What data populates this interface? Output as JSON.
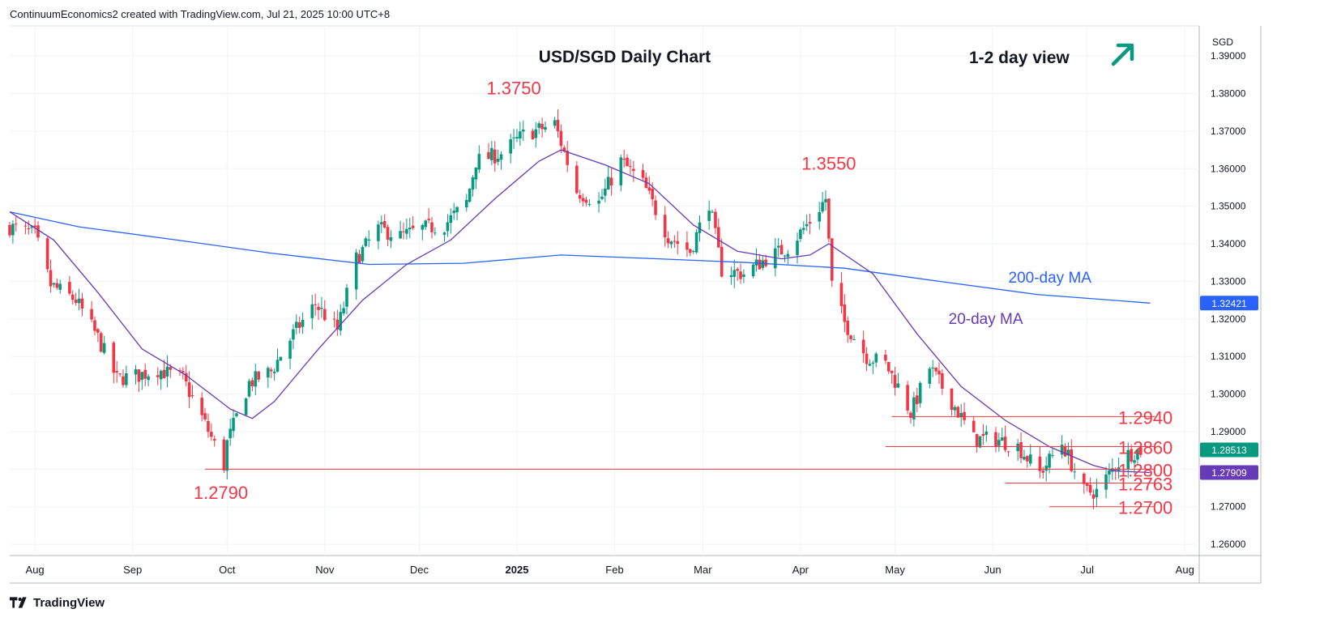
{
  "header": {
    "credit": "ContinuumEconomics2 created with TradingView.com, Jul 21, 2025 10:00 UTC+8"
  },
  "footer": {
    "brand": "TradingView"
  },
  "colors": {
    "up_candle": "#089981",
    "down_candle": "#f23645",
    "ma20": "#673ab7",
    "ma200": "#2962ff",
    "level_line": "#f23645",
    "annotation_red": "#f23645",
    "arrow": "#089981",
    "price_badge": "#089981"
  },
  "chart_data": {
    "type": "candlestick",
    "title": "USD/SGD Daily Chart",
    "view_label": "1-2 day view",
    "view_direction_icon": "arrow-up-right-icon",
    "currency": "SGD",
    "ylim": [
      1.257,
      1.398
    ],
    "y_ticks": [
      "1.39000",
      "1.38000",
      "1.37000",
      "1.36000",
      "1.35000",
      "1.34000",
      "1.33000",
      "1.32000",
      "1.31000",
      "1.30000",
      "1.29000",
      "1.28000",
      "1.27000",
      "1.26000"
    ],
    "x_ticks": [
      {
        "label": "Aug",
        "date": "2024-08-01",
        "bold": false
      },
      {
        "label": "Sep",
        "date": "2024-09-01",
        "bold": false
      },
      {
        "label": "Oct",
        "date": "2024-10-01",
        "bold": false
      },
      {
        "label": "Nov",
        "date": "2024-11-01",
        "bold": false
      },
      {
        "label": "Dec",
        "date": "2024-12-01",
        "bold": false
      },
      {
        "label": "2025",
        "date": "2025-01-01",
        "bold": true
      },
      {
        "label": "Feb",
        "date": "2025-02-01",
        "bold": false
      },
      {
        "label": "Mar",
        "date": "2025-03-01",
        "bold": false
      },
      {
        "label": "Apr",
        "date": "2025-04-01",
        "bold": false
      },
      {
        "label": "May",
        "date": "2025-05-01",
        "bold": false
      },
      {
        "label": "Jun",
        "date": "2025-06-01",
        "bold": false
      },
      {
        "label": "Jul",
        "date": "2025-07-01",
        "bold": false
      },
      {
        "label": "Aug",
        "date": "2025-08-01",
        "bold": false
      }
    ],
    "x_range": [
      "2024-07-24",
      "2025-09-08"
    ],
    "close_path": [
      [
        "2024-07-24",
        1.3445
      ],
      [
        "2024-08-01",
        1.3425
      ],
      [
        "2024-08-06",
        1.329
      ],
      [
        "2024-08-14",
        1.325
      ],
      [
        "2024-08-21",
        1.315
      ],
      [
        "2024-08-27",
        1.304
      ],
      [
        "2024-09-03",
        1.305
      ],
      [
        "2024-09-09",
        1.3065
      ],
      [
        "2024-09-17",
        1.304
      ],
      [
        "2024-09-24",
        1.292
      ],
      [
        "2024-09-30",
        1.281
      ],
      [
        "2024-10-01",
        1.287
      ],
      [
        "2024-10-08",
        1.303
      ],
      [
        "2024-10-15",
        1.306
      ],
      [
        "2024-10-22",
        1.316
      ],
      [
        "2024-10-29",
        1.324
      ],
      [
        "2024-11-05",
        1.317
      ],
      [
        "2024-11-11",
        1.336
      ],
      [
        "2024-11-18",
        1.344
      ],
      [
        "2024-11-25",
        1.342
      ],
      [
        "2024-12-02",
        1.344
      ],
      [
        "2024-12-09",
        1.345
      ],
      [
        "2024-12-16",
        1.351
      ],
      [
        "2024-12-19",
        1.362
      ],
      [
        "2024-12-27",
        1.364
      ],
      [
        "2025-01-03",
        1.369
      ],
      [
        "2025-01-10",
        1.371
      ],
      [
        "2025-01-13",
        1.372
      ],
      [
        "2025-01-20",
        1.354
      ],
      [
        "2025-01-27",
        1.351
      ],
      [
        "2025-02-03",
        1.362
      ],
      [
        "2025-02-10",
        1.356
      ],
      [
        "2025-02-18",
        1.342
      ],
      [
        "2025-02-25",
        1.338
      ],
      [
        "2025-03-03",
        1.351
      ],
      [
        "2025-03-07",
        1.333
      ],
      [
        "2025-03-14",
        1.332
      ],
      [
        "2025-03-21",
        1.336
      ],
      [
        "2025-03-28",
        1.339
      ],
      [
        "2025-04-04",
        1.346
      ],
      [
        "2025-04-09",
        1.352
      ],
      [
        "2025-04-11",
        1.329
      ],
      [
        "2025-04-15",
        1.319
      ],
      [
        "2025-04-22",
        1.31
      ],
      [
        "2025-04-28",
        1.308
      ],
      [
        "2025-05-02",
        1.302
      ],
      [
        "2025-05-06",
        1.295
      ],
      [
        "2025-05-12",
        1.307
      ],
      [
        "2025-05-19",
        1.298
      ],
      [
        "2025-05-26",
        1.288
      ],
      [
        "2025-06-02",
        1.288
      ],
      [
        "2025-06-09",
        1.286
      ],
      [
        "2025-06-16",
        1.279
      ],
      [
        "2025-06-23",
        1.287
      ],
      [
        "2025-06-30",
        1.274
      ],
      [
        "2025-07-04",
        1.274
      ],
      [
        "2025-07-10",
        1.281
      ],
      [
        "2025-07-14",
        1.284
      ],
      [
        "2025-07-18",
        1.2851
      ]
    ],
    "moving_averages": [
      {
        "name": "200-day MA",
        "color": "#2962ff",
        "last_value": "1.32421",
        "points": [
          [
            "2024-07-24",
            1.3485
          ],
          [
            "2024-08-15",
            1.3445
          ],
          [
            "2024-09-15",
            1.341
          ],
          [
            "2024-10-15",
            1.3375
          ],
          [
            "2024-11-15",
            1.3345
          ],
          [
            "2024-12-15",
            1.3348
          ],
          [
            "2025-01-15",
            1.337
          ],
          [
            "2025-02-15",
            1.336
          ],
          [
            "2025-03-15",
            1.335
          ],
          [
            "2025-04-15",
            1.3335
          ],
          [
            "2025-05-15",
            1.33
          ],
          [
            "2025-06-15",
            1.3265
          ],
          [
            "2025-07-21",
            1.3242
          ]
        ]
      },
      {
        "name": "20-day MA",
        "color": "#673ab7",
        "last_value": "1.27909",
        "points": [
          [
            "2024-07-24",
            1.3485
          ],
          [
            "2024-08-07",
            1.341
          ],
          [
            "2024-08-21",
            1.327
          ],
          [
            "2024-09-04",
            1.312
          ],
          [
            "2024-09-18",
            1.305
          ],
          [
            "2024-10-02",
            1.296
          ],
          [
            "2024-10-09",
            1.2935
          ],
          [
            "2024-10-16",
            1.298
          ],
          [
            "2024-10-30",
            1.312
          ],
          [
            "2024-11-13",
            1.325
          ],
          [
            "2024-11-27",
            1.3345
          ],
          [
            "2024-12-11",
            1.341
          ],
          [
            "2024-12-25",
            1.352
          ],
          [
            "2025-01-08",
            1.362
          ],
          [
            "2025-01-15",
            1.365
          ],
          [
            "2025-01-29",
            1.361
          ],
          [
            "2025-02-12",
            1.356
          ],
          [
            "2025-02-26",
            1.345
          ],
          [
            "2025-03-12",
            1.338
          ],
          [
            "2025-03-26",
            1.336
          ],
          [
            "2025-04-04",
            1.337
          ],
          [
            "2025-04-10",
            1.34
          ],
          [
            "2025-04-24",
            1.332
          ],
          [
            "2025-05-08",
            1.316
          ],
          [
            "2025-05-22",
            1.302
          ],
          [
            "2025-06-05",
            1.293
          ],
          [
            "2025-06-19",
            1.286
          ],
          [
            "2025-07-03",
            1.281
          ],
          [
            "2025-07-10",
            1.2795
          ],
          [
            "2025-07-21",
            1.2791
          ]
        ]
      }
    ],
    "levels": [
      {
        "label": "1.2940",
        "value": 1.294,
        "from": "2025-04-30",
        "to": "2025-07-21"
      },
      {
        "label": "1.2860",
        "value": 1.286,
        "from": "2025-04-28",
        "to": "2025-07-21"
      },
      {
        "label": "1.2800",
        "value": 1.28,
        "from": "2024-09-24",
        "to": "2025-07-21"
      },
      {
        "label": "1.2763",
        "value": 1.2763,
        "from": "2025-06-05",
        "to": "2025-07-21"
      },
      {
        "label": "1.2700",
        "value": 1.27,
        "from": "2025-06-19",
        "to": "2025-07-21"
      }
    ],
    "peak_labels": [
      {
        "label": "1.3750",
        "date": "2024-12-31",
        "value": 1.375
      },
      {
        "label": "1.3550",
        "date": "2025-04-10",
        "value": 1.355
      },
      {
        "label": "1.2790",
        "date": "2024-09-29",
        "value": 1.279
      }
    ],
    "ma_labels": [
      {
        "label": "200-day MA",
        "date": "2025-06-06",
        "value": 1.331
      },
      {
        "label": "20-day MA",
        "date": "2025-05-18",
        "value": 1.32
      }
    ],
    "last_price": "1.28513",
    "last_price_value": 1.28513,
    "ma20_last_value": 1.27909,
    "ma200_last_value": 1.32421
  }
}
